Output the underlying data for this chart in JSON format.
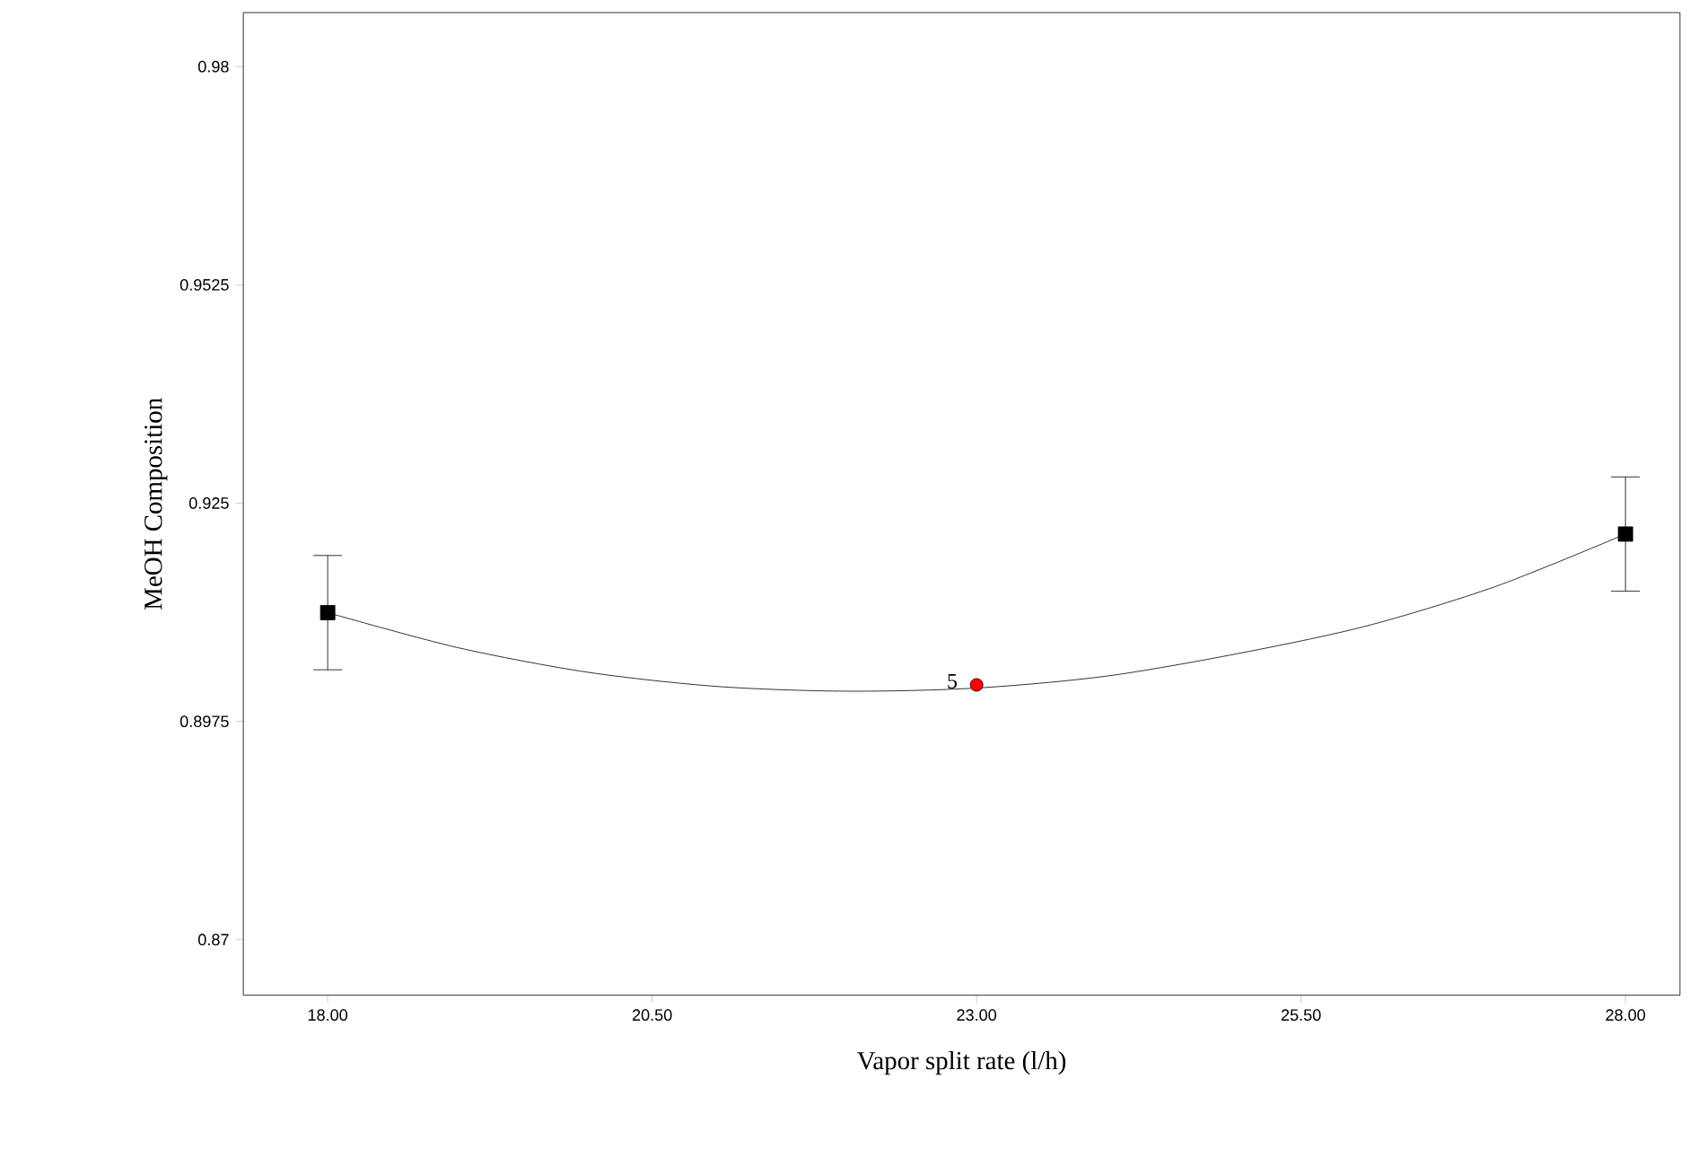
{
  "chart_data": {
    "type": "line",
    "xlabel": "Vapor split rate (l/h)",
    "ylabel": "MeOH Composition",
    "xlim": [
      17.35,
      28.42
    ],
    "ylim": [
      0.863,
      0.9868
    ],
    "xticks": [
      {
        "value": 18,
        "label": "18.00"
      },
      {
        "value": 20.5,
        "label": "20.50"
      },
      {
        "value": 23,
        "label": "23.00"
      },
      {
        "value": 25.5,
        "label": "25.50"
      },
      {
        "value": 28,
        "label": "28.00"
      }
    ],
    "yticks": [
      0.87,
      0.8975,
      0.925,
      0.9525,
      0.98
    ],
    "grid": false,
    "series": [
      {
        "color": "#000000",
        "marker": "none",
        "x": [
          18,
          19,
          20,
          21,
          22,
          23,
          24,
          25,
          26,
          27,
          28
        ],
        "values": [
          0.9112,
          0.9068,
          0.9037,
          0.9019,
          0.9013,
          0.9017,
          0.9032,
          0.906,
          0.9095,
          0.9145,
          0.9211
        ]
      },
      {
        "type": "scatter",
        "color": "#000000",
        "marker": "square",
        "x": [
          18,
          28
        ],
        "values": [
          0.9112,
          0.9211
        ],
        "errors": [
          0.0072,
          0.0072
        ]
      },
      {
        "type": "scatter",
        "color": "#ff0000",
        "marker": "circle",
        "x": [
          23
        ],
        "values": [
          0.9021
        ]
      }
    ],
    "annotations": [
      {
        "text": "5",
        "x": 23,
        "y": 0.9021
      }
    ]
  }
}
